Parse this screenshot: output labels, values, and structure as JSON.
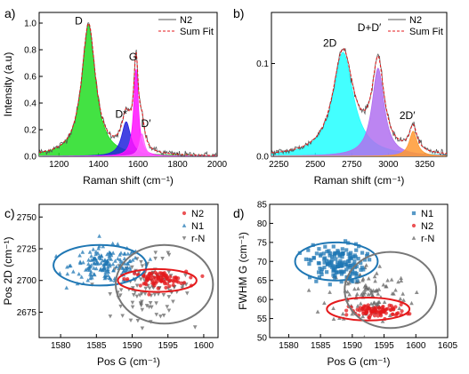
{
  "chart_data": [
    {
      "panel_label": "a)",
      "type": "area",
      "xlabel": "Raman shift (cm⁻¹)",
      "ylabel": "Intensity (a.u)",
      "xlim": [
        1100,
        2000
      ],
      "ylim": [
        0,
        1.08
      ],
      "xticks": [
        "1200",
        "1400",
        "1600",
        "1800",
        "2000"
      ],
      "yticks": [
        "0.0",
        "0.2",
        "0.4",
        "0.6",
        "0.8",
        "1.0"
      ],
      "legend": {
        "placement": "top-right",
        "entries": [
          "N2",
          "Sum Fit"
        ]
      },
      "annotations": [
        "D",
        "D*",
        "G",
        "D′"
      ],
      "peaks": [
        {
          "name": "D",
          "center": 1350,
          "height": 0.99,
          "width": 85,
          "color": "#22dd22"
        },
        {
          "name": "D*",
          "center": 1540,
          "height": 0.26,
          "width": 55,
          "color": "#2222dd"
        },
        {
          "name": "G",
          "center": 1590,
          "height": 0.66,
          "width": 28,
          "color": "#ff10ff"
        },
        {
          "name": "D′",
          "center": 1620,
          "height": 0.17,
          "width": 30,
          "color": "#ff66ff"
        }
      ],
      "series": [
        {
          "name": "N2",
          "color": "#555555"
        },
        {
          "name": "Sum Fit",
          "color": "#e41a1c"
        }
      ]
    },
    {
      "panel_label": "b)",
      "type": "area",
      "xlabel": "Raman shift (cm⁻¹)",
      "xlim": [
        2200,
        3400
      ],
      "ylim": [
        0,
        0.155
      ],
      "xticks": [
        "2250",
        "2500",
        "2750",
        "3000",
        "3250"
      ],
      "yticks": [
        "0.0",
        "0.1"
      ],
      "legend": {
        "placement": "top-right",
        "entries": [
          "N2",
          "Sum Fit"
        ]
      },
      "annotations": [
        "2D",
        "D+D′",
        "2D′"
      ],
      "peaks": [
        {
          "name": "2D",
          "center": 2690,
          "height": 0.112,
          "width": 170,
          "color": "#22ffff"
        },
        {
          "name": "D+D′",
          "center": 2930,
          "height": 0.095,
          "width": 100,
          "color": "#b070f0"
        },
        {
          "name": "2D′",
          "center": 3170,
          "height": 0.027,
          "width": 65,
          "color": "#ff9933"
        }
      ],
      "series": [
        {
          "name": "N2",
          "color": "#555555"
        },
        {
          "name": "Sum Fit",
          "color": "#e41a1c"
        }
      ]
    },
    {
      "panel_label": "c)",
      "type": "scatter",
      "xlabel": "Pos G (cm⁻¹)",
      "ylabel": "Pos 2D (cm⁻¹)",
      "xlim": [
        1577,
        1602
      ],
      "ylim": [
        2655,
        2760
      ],
      "xticks": [
        "1580",
        "1585",
        "1590",
        "1595",
        "1600"
      ],
      "yticks": [
        "2675",
        "2700",
        "2725",
        "2750"
      ],
      "legend": {
        "placement": "top-right",
        "entries": [
          "N2",
          "N1",
          "r-N"
        ]
      },
      "series": [
        {
          "name": "N2",
          "marker": "circle",
          "color": "#e41a1c",
          "center": [
            1593.5,
            2701
          ],
          "spread": [
            2.0,
            3.0
          ],
          "n": 90
        },
        {
          "name": "N1",
          "marker": "triangle-up",
          "color": "#1f77b4",
          "center": [
            1586.5,
            2712
          ],
          "spread": [
            2.5,
            7.0
          ],
          "n": 160
        },
        {
          "name": "r-N",
          "marker": "triangle-down",
          "color": "#666666",
          "center": [
            1592.5,
            2694
          ],
          "spread": [
            2.8,
            12.0
          ],
          "n": 110
        }
      ],
      "ellipses": [
        {
          "color": "#1f77b4",
          "center": [
            1585.5,
            2712
          ],
          "rx": 6.5,
          "ry": 16
        },
        {
          "color": "#e41a1c",
          "center": [
            1593.5,
            2700
          ],
          "rx": 5.5,
          "ry": 9
        },
        {
          "color": "#777777",
          "center": [
            1594.5,
            2697
          ],
          "rx": 6.8,
          "ry": 31
        }
      ]
    },
    {
      "panel_label": "d)",
      "type": "scatter",
      "xlabel": "Pos G (cm⁻¹)",
      "ylabel": "FWHM G (cm⁻¹)",
      "xlim": [
        1577,
        1605
      ],
      "ylim": [
        50,
        85
      ],
      "xticks": [
        "1580",
        "1585",
        "1590",
        "1595",
        "1600",
        "1605"
      ],
      "yticks": [
        "50",
        "55",
        "60",
        "65",
        "70",
        "75",
        "80",
        "85"
      ],
      "legend": {
        "placement": "top-right",
        "entries": [
          "N1",
          "N2",
          "r-N"
        ]
      },
      "series": [
        {
          "name": "N1",
          "marker": "square",
          "color": "#1f77b4",
          "center": [
            1587.5,
            69.5
          ],
          "spread": [
            2.2,
            2.5
          ],
          "n": 150
        },
        {
          "name": "N2",
          "marker": "circle",
          "color": "#e41a1c",
          "center": [
            1594.0,
            57.0
          ],
          "spread": [
            2.2,
            0.8
          ],
          "n": 90
        },
        {
          "name": "r-N",
          "marker": "triangle-up",
          "color": "#666666",
          "center": [
            1592.5,
            61.5
          ],
          "spread": [
            3.2,
            4.0
          ],
          "n": 110
        }
      ],
      "ellipses": [
        {
          "color": "#1f77b4",
          "center": [
            1587.5,
            70
          ],
          "rx": 6.5,
          "ry": 5
        },
        {
          "color": "#e41a1c",
          "center": [
            1592.5,
            57.5
          ],
          "rx": 6.5,
          "ry": 3
        },
        {
          "color": "#777777",
          "center": [
            1596.0,
            62.5
          ],
          "rx": 7.2,
          "ry": 10
        }
      ]
    }
  ]
}
